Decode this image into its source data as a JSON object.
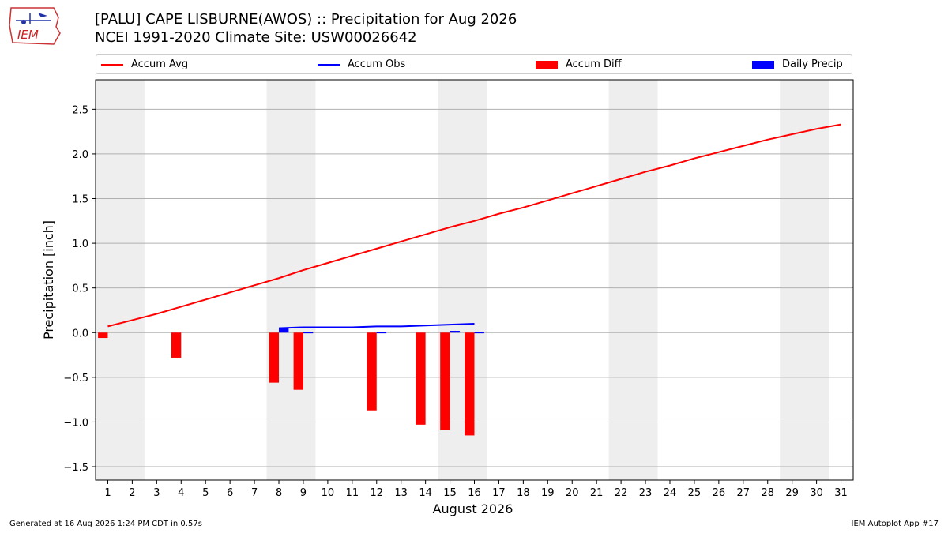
{
  "header": {
    "title_line1": "[PALU] CAPE LISBURNE(AWOS) :: Precipitation for Aug 2026",
    "title_line2": "NCEI 1991-2020 Climate Site: USW00026642",
    "logo_text": "IEM"
  },
  "footer": {
    "generated": "Generated at 16 Aug 2026 1:24 PM CDT in 0.57s",
    "app": "IEM Autoplot App #17"
  },
  "legend": [
    {
      "label": "Accum Avg",
      "kind": "line",
      "color": "#ff0000"
    },
    {
      "label": "Accum Obs",
      "kind": "line",
      "color": "#0000ff"
    },
    {
      "label": "Accum Diff",
      "kind": "bar",
      "color": "#ff0000"
    },
    {
      "label": "Daily Precip",
      "kind": "bar",
      "color": "#0000ff"
    }
  ],
  "chart_data": {
    "type": "bar",
    "xlabel": "August 2026",
    "ylabel": "Precipitation [inch]",
    "xlim": [
      0.5,
      31.5
    ],
    "ylim": [
      -1.65,
      2.83
    ],
    "yticks": [
      -1.5,
      -1.0,
      -0.5,
      0.0,
      0.5,
      1.0,
      1.5,
      2.0,
      2.5
    ],
    "ytick_labels": [
      "−1.5",
      "−1.0",
      "−0.5",
      "0.0",
      "0.5",
      "1.0",
      "1.5",
      "2.0",
      "2.5"
    ],
    "xticks": [
      1,
      2,
      3,
      4,
      5,
      6,
      7,
      8,
      9,
      10,
      11,
      12,
      13,
      14,
      15,
      16,
      17,
      18,
      19,
      20,
      21,
      22,
      23,
      24,
      25,
      26,
      27,
      28,
      29,
      30,
      31
    ],
    "xtick_labels": [
      "1",
      "2",
      "3",
      "4",
      "5",
      "6",
      "7",
      "8",
      "9",
      "10",
      "11",
      "12",
      "13",
      "14",
      "15",
      "16",
      "17",
      "18",
      "19",
      "20",
      "21",
      "22",
      "23",
      "24",
      "25",
      "26",
      "27",
      "28",
      "29",
      "30",
      "31"
    ],
    "weekend_shading": [
      [
        0.5,
        2.5
      ],
      [
        7.5,
        9.5
      ],
      [
        14.5,
        16.5
      ],
      [
        21.5,
        23.5
      ],
      [
        28.5,
        30.5
      ]
    ],
    "grid": "y",
    "colors": {
      "avg": "#ff0000",
      "obs": "#0000ff",
      "diff": "#ff0000",
      "daily": "#0000ff",
      "shade": "#eeeeee",
      "grid": "#b0b0b0"
    },
    "series": [
      {
        "name": "Accum Avg",
        "type": "line",
        "x": [
          1,
          2,
          3,
          4,
          5,
          6,
          7,
          8,
          9,
          10,
          11,
          12,
          13,
          14,
          15,
          16,
          17,
          18,
          19,
          20,
          21,
          22,
          23,
          24,
          25,
          26,
          27,
          28,
          29,
          30,
          31
        ],
        "values": [
          0.07,
          0.14,
          0.21,
          0.29,
          0.37,
          0.45,
          0.53,
          0.61,
          0.7,
          0.78,
          0.86,
          0.94,
          1.02,
          1.1,
          1.18,
          1.25,
          1.33,
          1.4,
          1.48,
          1.56,
          1.64,
          1.72,
          1.8,
          1.87,
          1.95,
          2.02,
          2.09,
          2.16,
          2.22,
          2.28,
          2.33
        ]
      },
      {
        "name": "Accum Obs",
        "type": "line",
        "x": [
          8,
          9,
          10,
          11,
          12,
          13,
          14,
          15,
          16
        ],
        "values": [
          0.05,
          0.06,
          0.06,
          0.06,
          0.07,
          0.07,
          0.08,
          0.09,
          0.1
        ]
      },
      {
        "name": "Accum Diff",
        "type": "bar",
        "x": [
          1,
          4,
          8,
          9,
          12,
          14,
          15,
          16
        ],
        "values": [
          -0.06,
          -0.28,
          -0.56,
          -0.64,
          -0.87,
          -1.03,
          -1.09,
          -1.15
        ]
      },
      {
        "name": "Daily Precip",
        "type": "bar",
        "x": [
          8,
          9,
          12,
          15,
          16
        ],
        "values": [
          0.05,
          0.01,
          0.01,
          0.02,
          0.01
        ]
      }
    ]
  }
}
